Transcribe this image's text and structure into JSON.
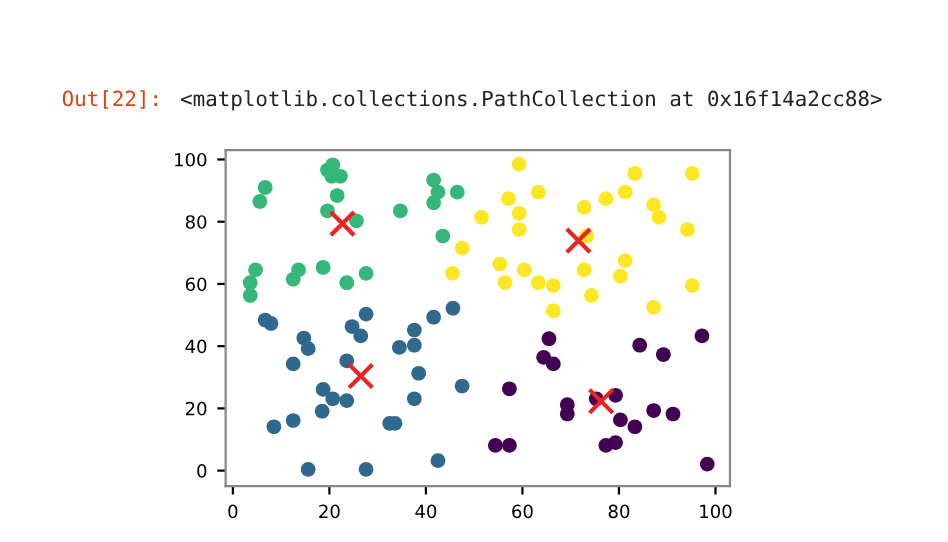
{
  "chart_data": {
    "type": "scatter",
    "annotations": [
      "Out[22]:",
      "<matplotlib.collections.PathCollection at 0x16f14a2cc88>"
    ],
    "xlim": [
      -1.5,
      103
    ],
    "ylim": [
      -5,
      103
    ],
    "xticks": [
      0,
      20,
      40,
      60,
      80,
      100
    ],
    "yticks": [
      0,
      20,
      40,
      60,
      80,
      100
    ],
    "grid": false,
    "series": [
      {
        "color": "#35b779",
        "marker": "circle",
        "x": [
          6.7,
          5.6,
          4.7,
          3.6,
          3.6,
          13.6,
          12.5,
          18.7,
          23.6,
          27.6,
          19.6,
          21.6,
          19.6,
          20.7,
          20.5,
          22.3,
          25.6,
          34.7,
          41.6,
          41.6,
          42.5,
          46.5,
          43.5
        ],
        "values": [
          91,
          86.5,
          64.5,
          60.4,
          56.3,
          64.5,
          61.5,
          65.3,
          60.4,
          63.4,
          83.5,
          88.4,
          96.6,
          98.3,
          94.6,
          94.6,
          80.3,
          83.5,
          93.4,
          86.1,
          89.5,
          89.5,
          75.4
        ]
      },
      {
        "color": "#31688e",
        "marker": "circle",
        "x": [
          6.7,
          7.9,
          14.7,
          15.6,
          12.5,
          24.7,
          27.6,
          26.5,
          23.6,
          18.7,
          20.7,
          23.6,
          18.5,
          8.5,
          12.5,
          15.6,
          27.6,
          34.5,
          37.6,
          37.6,
          38.5,
          37.6,
          32.5,
          33.6,
          41.6,
          45.6,
          47.5,
          42.5
        ],
        "values": [
          48.4,
          47.3,
          42.6,
          39.2,
          34.3,
          46.3,
          50.3,
          43.3,
          35.3,
          26.1,
          23.1,
          22.5,
          19.1,
          14.1,
          16.1,
          0.4,
          0.4,
          39.6,
          45.2,
          40.3,
          31.3,
          23.1,
          15.2,
          15.2,
          49.3,
          52.2,
          27.2,
          3.2
        ]
      },
      {
        "color": "#fde725",
        "marker": "circle",
        "x": [
          51.5,
          47.5,
          45.5,
          55.3,
          56.4,
          57.1,
          59.3,
          59.3,
          59.3,
          60.4,
          63.3,
          63.3,
          66.4,
          66.4,
          72.8,
          73.3,
          72.8,
          74.3,
          77.3,
          81.3,
          83.3,
          81.3,
          80.3,
          87.2,
          88.3,
          87.2,
          94.2,
          95.2,
          95.2
        ],
        "values": [
          81.4,
          71.5,
          63.4,
          66.4,
          60.4,
          87.4,
          98.5,
          82.7,
          77.5,
          64.5,
          89.5,
          60.4,
          59.5,
          51.4,
          84.6,
          75.4,
          64.5,
          56.3,
          87.4,
          89.5,
          95.5,
          67.5,
          62.5,
          85.4,
          81.4,
          52.5,
          77.5,
          95.5,
          59.5
        ]
      },
      {
        "color": "#440154",
        "marker": "circle",
        "x": [
          65.5,
          64.4,
          66.4,
          57.3,
          54.4,
          57.3,
          69.3,
          69.3,
          75.3,
          79.3,
          80.3,
          83.3,
          77.3,
          79.3,
          84.3,
          89.2,
          87.2,
          91.2,
          97.2,
          98.3
        ],
        "values": [
          42.4,
          36.4,
          34.3,
          26.3,
          8.1,
          8.1,
          21.2,
          18.2,
          23.1,
          24.2,
          16.3,
          14.1,
          8.1,
          9.0,
          40.3,
          37.3,
          19.3,
          18.2,
          43.3,
          2.1
        ]
      },
      {
        "color": "#ee2222",
        "marker": "cross",
        "x": [
          22.7,
          26.5,
          71.6,
          76.3
        ],
        "values": [
          79.4,
          30.4,
          73.9,
          22.3
        ]
      }
    ]
  }
}
